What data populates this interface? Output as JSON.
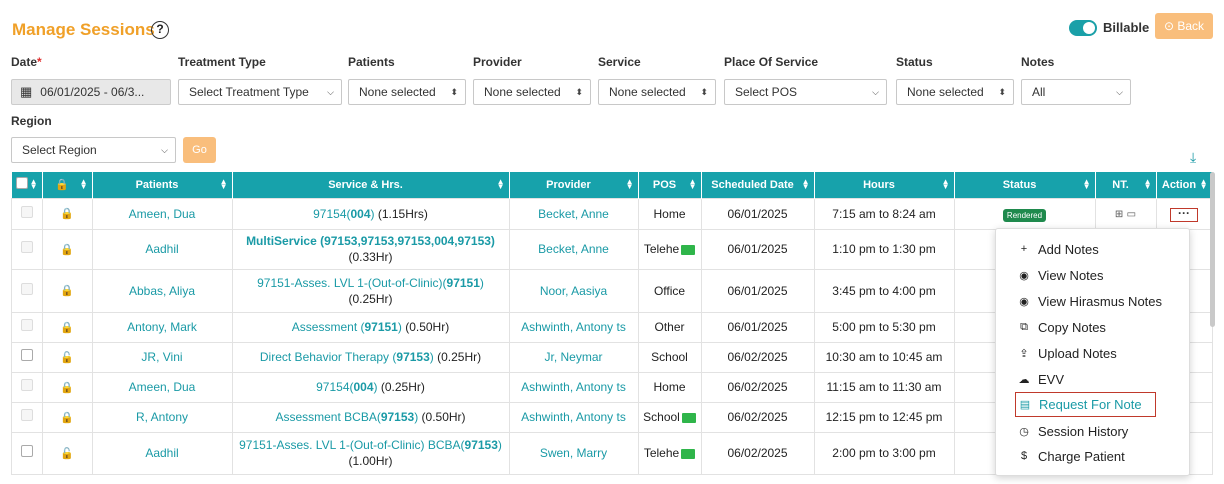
{
  "page": {
    "title": "Manage Sessions",
    "help": "?",
    "billable": "Billable",
    "back": "⊙ Back"
  },
  "filters": {
    "date": {
      "label": "Date",
      "required": "*",
      "value": "06/01/2025 - 06/3..."
    },
    "treatment": {
      "label": "Treatment Type",
      "value": "Select Treatment Type"
    },
    "patients": {
      "label": "Patients",
      "value": "None selected"
    },
    "provider": {
      "label": "Provider",
      "value": "None selected"
    },
    "service": {
      "label": "Service",
      "value": "None selected"
    },
    "pos": {
      "label": "Place Of Service",
      "value": "Select POS"
    },
    "status": {
      "label": "Status",
      "value": "None selected"
    },
    "notes": {
      "label": "Notes",
      "value": "All"
    },
    "region": {
      "label": "Region",
      "value": "Select Region"
    },
    "go": "Go"
  },
  "table": {
    "headers": [
      "Patients",
      "Service & Hrs.",
      "Provider",
      "POS",
      "Scheduled Date",
      "Hours",
      "Status",
      "NT.",
      "Action"
    ],
    "rows": [
      {
        "patient": "Ameen, Dua",
        "svc_a": "97154(",
        "svc_b": "004",
        "svc_c": ")",
        "svc_hrs": " (1.15Hrs)",
        "provider": "Becket, Anne",
        "pos": "Home",
        "date": "06/01/2025",
        "hours": "7:15 am to 8:24 am",
        "status": "Rendered"
      },
      {
        "patient": "Aadhil",
        "svc_bold": "MultiService (97153,97153,97153,004,97153)",
        "svc_hrs": "(0.33Hr)",
        "provider": "Becket, Anne",
        "pos": "Telehe",
        "date": "06/01/2025",
        "hours": "1:10 pm to 1:30 pm"
      },
      {
        "patient": "Abbas, Aliya",
        "svc_a": "97151-Asses. LVL 1-(Out-of-Clinic)(",
        "svc_b": "97151",
        "svc_c": ")",
        "svc_hrs": "(0.25Hr)",
        "provider": "Noor, Aasiya",
        "pos": "Office",
        "date": "06/01/2025",
        "hours": "3:45 pm to 4:00 pm"
      },
      {
        "patient": "Antony, Mark",
        "svc_a": "Assessment (",
        "svc_b": "97151",
        "svc_c": ")",
        "svc_hrs": " (0.50Hr)",
        "provider": "Ashwinth, Antony ts",
        "pos": "Other",
        "date": "06/01/2025",
        "hours": "5:00 pm to 5:30 pm"
      },
      {
        "patient": "JR, Vini",
        "svc_a": "Direct Behavior Therapy (",
        "svc_b": "97153",
        "svc_c": ")",
        "svc_hrs": " (0.25Hr)",
        "provider": "Jr, Neymar",
        "pos": "School",
        "date": "06/02/2025",
        "hours": "10:30 am to 10:45 am"
      },
      {
        "patient": "Ameen, Dua",
        "svc_a": "97154(",
        "svc_b": "004",
        "svc_c": ")",
        "svc_hrs": " (0.25Hr)",
        "provider": "Ashwinth, Antony ts",
        "pos": "Home",
        "date": "06/02/2025",
        "hours": "11:15 am to 11:30 am"
      },
      {
        "patient": "R, Antony",
        "svc_a": "Assessment BCBA(",
        "svc_b": "97153",
        "svc_c": ")",
        "svc_hrs": " (0.50Hr)",
        "provider": "Ashwinth, Antony ts",
        "pos": "School",
        "date": "06/02/2025",
        "hours": "12:15 pm to 12:45 pm"
      },
      {
        "patient": "Aadhil",
        "svc_a": "97151-Asses. LVL 1-(Out-of-Clinic) BCBA(",
        "svc_b": "97153",
        "svc_c": ")",
        "svc_hrs": "(1.00Hr)",
        "provider": "Swen, Marry",
        "pos": "Telehe",
        "date": "06/02/2025",
        "hours": "2:00 pm to 3:00 pm"
      }
    ]
  },
  "menu": {
    "items": [
      "Add Notes",
      "View Notes",
      "View Hirasmus Notes",
      "Copy Notes",
      "Upload Notes",
      "EVV",
      "Request For Note",
      "Session History",
      "Charge Patient"
    ]
  },
  "colors": {
    "accent": "#17a2ab",
    "title": "#f0a028",
    "highlight": "#c0392b"
  }
}
